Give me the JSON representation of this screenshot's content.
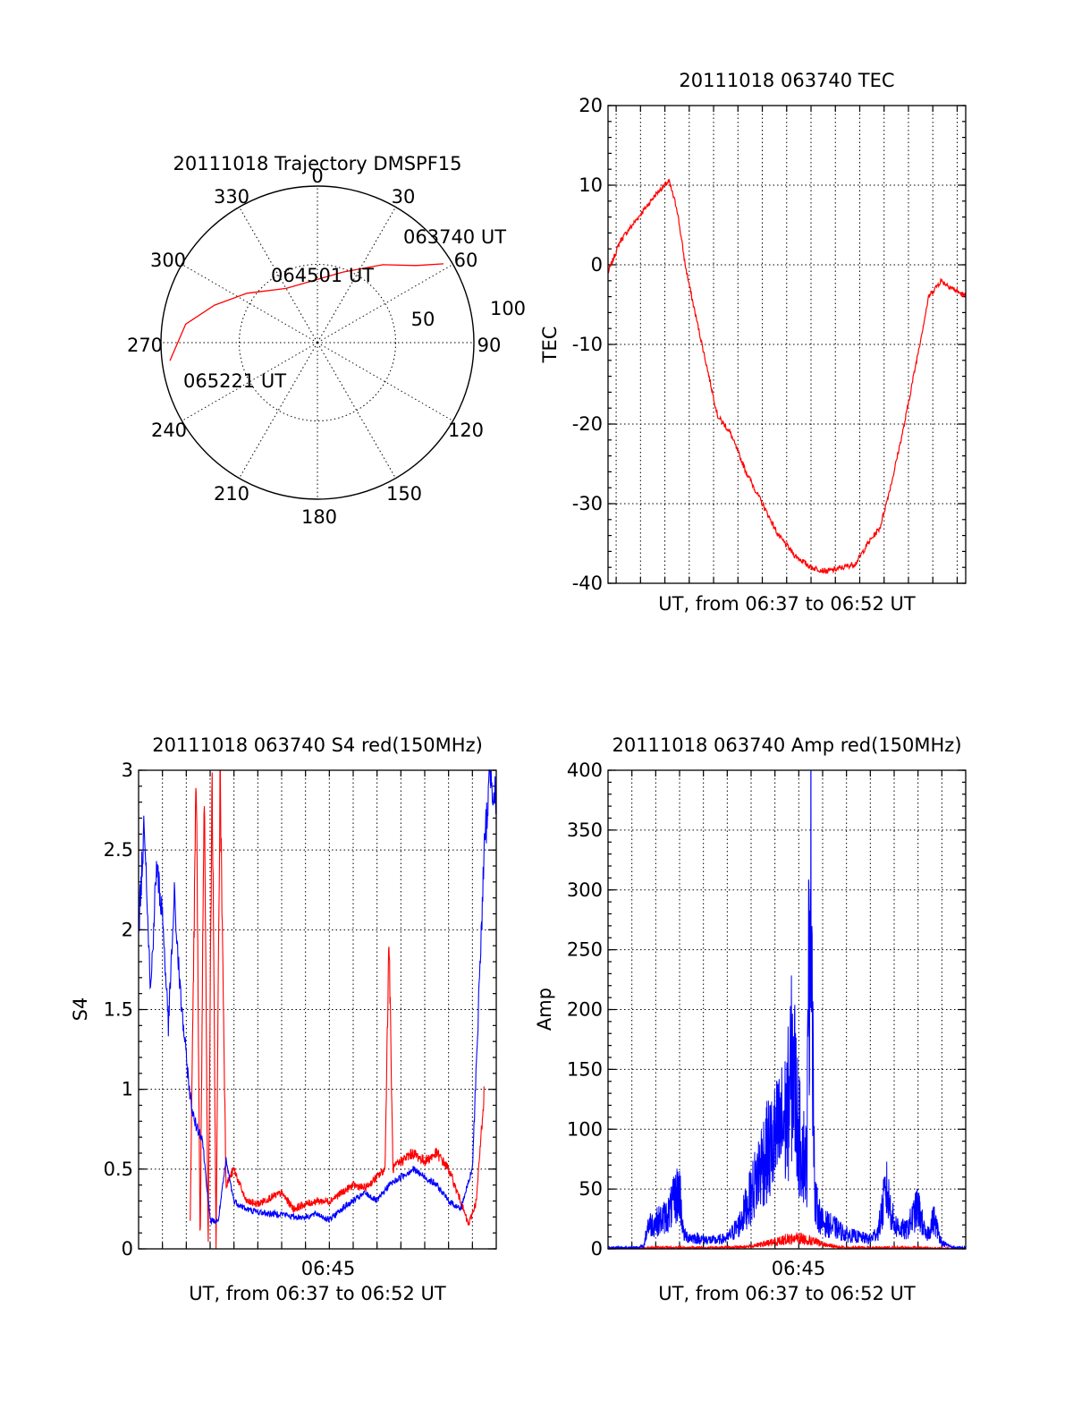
{
  "colors": {
    "red": "#ff0000",
    "blue": "#0000ff",
    "axis": "#000000"
  },
  "chart_data": [
    {
      "type": "polar",
      "title": "20111018 Trajectory DMSPF15",
      "angle_labels": [
        "0",
        "30",
        "60",
        "90",
        "120",
        "150",
        "180",
        "210",
        "240",
        "270",
        "300",
        "330"
      ],
      "radius_labels": [
        "50",
        "100"
      ],
      "rlim": [
        0,
        100
      ],
      "grid": true,
      "series": [
        {
          "color": "red",
          "points": [
            {
              "az": 58,
              "el": 95
            },
            {
              "az": 52,
              "el": 80
            },
            {
              "az": 40,
              "el": 65
            },
            {
              "az": 20,
              "el": 48
            },
            {
              "az": 330,
              "el": 40
            },
            {
              "az": 305,
              "el": 55
            },
            {
              "az": 290,
              "el": 70
            },
            {
              "az": 278,
              "el": 85
            },
            {
              "az": 263,
              "el": 95
            }
          ]
        }
      ],
      "annotations": [
        {
          "text": "063740 UT",
          "az": 58,
          "el": 95
        },
        {
          "text": "064501 UT",
          "az": 335,
          "el": 42
        },
        {
          "text": "065221 UT",
          "az": 263,
          "el": 95
        }
      ]
    },
    {
      "type": "line",
      "title": "20111018 063740 TEC",
      "xlabel": "UT, from 06:37 to 06:52 UT",
      "ylabel": "TEC",
      "xlim": [
        "06:37:40",
        "06:52:21"
      ],
      "ylim": [
        -40,
        20
      ],
      "yticks": [
        "20",
        "10",
        "0",
        "-10",
        "-20",
        "-30",
        "-40"
      ],
      "grid": true,
      "series": [
        {
          "color": "red",
          "x": [
            "06:37:40",
            "06:38:10",
            "06:38:40",
            "06:39:10",
            "06:39:40",
            "06:40:10",
            "06:40:30",
            "06:40:50",
            "06:41:10",
            "06:41:40",
            "06:42:10",
            "06:42:40",
            "06:43:20",
            "06:44:00",
            "06:44:40",
            "06:45:20",
            "06:46:00",
            "06:46:40",
            "06:47:20",
            "06:47:50",
            "06:48:20",
            "06:48:50",
            "06:49:20",
            "06:49:50",
            "06:50:20",
            "06:50:50",
            "06:51:20",
            "06:51:50",
            "06:52:21"
          ],
          "y": [
            -1,
            3,
            5,
            7,
            9,
            10.5,
            7,
            0,
            -5,
            -12,
            -19,
            -21,
            -26,
            -30,
            -34,
            -36.5,
            -38,
            -38.5,
            -38,
            -37.5,
            -35,
            -33,
            -27,
            -20,
            -12,
            -4,
            -2,
            -3,
            -4
          ]
        }
      ]
    },
    {
      "type": "line",
      "title": "20111018 063740 S4 red(150MHz)",
      "xlabel": "UT, from 06:37 to 06:52 UT",
      "ylabel": "S4",
      "xtick_label": "06:45",
      "xlim": [
        "06:37:00",
        "06:52:00"
      ],
      "ylim": [
        0,
        3
      ],
      "yticks": [
        "3",
        "2.5",
        "2",
        "1.5",
        "1",
        "0.5",
        "0"
      ],
      "grid": true,
      "series": [
        {
          "color": "red",
          "x": [
            "06:39:10",
            "06:39:25",
            "06:39:35",
            "06:39:45",
            "06:39:55",
            "06:40:05",
            "06:40:15",
            "06:40:25",
            "06:40:40",
            "06:41:00",
            "06:41:30",
            "06:42:00",
            "06:42:30",
            "06:43:00",
            "06:43:30",
            "06:44:00",
            "06:44:30",
            "06:45:00",
            "06:45:30",
            "06:46:00",
            "06:46:30",
            "06:47:00",
            "06:47:20",
            "06:47:30",
            "06:47:40",
            "06:48:00",
            "06:48:30",
            "06:49:00",
            "06:49:30",
            "06:50:00",
            "06:50:30",
            "06:50:50",
            "06:51:10",
            "06:51:30"
          ],
          "y": [
            0.2,
            3,
            0,
            3,
            0,
            3,
            0,
            3,
            0.4,
            0.5,
            0.3,
            0.28,
            0.32,
            0.35,
            0.25,
            0.28,
            0.3,
            0.3,
            0.35,
            0.4,
            0.38,
            0.45,
            0.5,
            1.97,
            0.5,
            0.55,
            0.6,
            0.55,
            0.6,
            0.5,
            0.3,
            0.15,
            0.3,
            1.0
          ]
        },
        {
          "color": "blue",
          "x": [
            "06:37:00",
            "06:37:15",
            "06:37:30",
            "06:37:45",
            "06:38:00",
            "06:38:15",
            "06:38:30",
            "06:38:45",
            "06:39:00",
            "06:39:10",
            "06:39:20",
            "06:39:40",
            "06:40:00",
            "06:40:20",
            "06:40:40",
            "06:41:00",
            "06:41:30",
            "06:42:00",
            "06:42:30",
            "06:43:00",
            "06:43:30",
            "06:44:00",
            "06:44:30",
            "06:45:00",
            "06:45:30",
            "06:46:00",
            "06:46:30",
            "06:47:00",
            "06:47:30",
            "06:48:00",
            "06:48:30",
            "06:49:00",
            "06:49:30",
            "06:50:00",
            "06:50:30",
            "06:51:00",
            "06:51:15",
            "06:51:30",
            "06:51:45",
            "06:52:00"
          ],
          "y": [
            2.0,
            2.7,
            1.6,
            2.4,
            2.1,
            1.4,
            2.2,
            1.6,
            1.2,
            0.95,
            0.8,
            0.7,
            0.18,
            0.17,
            0.55,
            0.3,
            0.25,
            0.23,
            0.22,
            0.22,
            0.2,
            0.2,
            0.22,
            0.18,
            0.25,
            0.3,
            0.35,
            0.3,
            0.4,
            0.45,
            0.5,
            0.45,
            0.4,
            0.3,
            0.25,
            0.5,
            1.5,
            2.5,
            3.0,
            2.8
          ]
        }
      ]
    },
    {
      "type": "line",
      "title": "20111018 063740 Amp red(150MHz)",
      "xlabel": "UT, from 06:37 to 06:52 UT",
      "ylabel": "Amp",
      "xtick_label": "06:45",
      "xlim": [
        "06:37:00",
        "06:52:00"
      ],
      "ylim": [
        0,
        400
      ],
      "yticks": [
        "400",
        "350",
        "300",
        "250",
        "200",
        "150",
        "100",
        "50",
        "0"
      ],
      "grid": true,
      "series": [
        {
          "color": "red",
          "x": [
            "06:37:00",
            "06:38:00",
            "06:39:00",
            "06:40:00",
            "06:41:00",
            "06:42:00",
            "06:43:00",
            "06:43:30",
            "06:44:00",
            "06:44:30",
            "06:45:00",
            "06:45:30",
            "06:46:00",
            "06:46:30",
            "06:47:00",
            "06:48:00",
            "06:49:00",
            "06:50:00",
            "06:51:00",
            "06:52:00"
          ],
          "y": [
            0,
            0,
            1,
            1,
            1,
            1,
            2,
            4,
            6,
            8,
            9,
            7,
            4,
            2,
            1,
            1,
            1,
            1,
            0,
            0
          ]
        },
        {
          "color": "blue",
          "x": [
            "06:37:00",
            "06:38:00",
            "06:38:30",
            "06:38:40",
            "06:39:00",
            "06:39:30",
            "06:40:00",
            "06:40:10",
            "06:40:20",
            "06:40:40",
            "06:41:00",
            "06:41:30",
            "06:42:00",
            "06:42:30",
            "06:43:00",
            "06:43:30",
            "06:44:00",
            "06:44:30",
            "06:44:45",
            "06:45:00",
            "06:45:20",
            "06:45:30",
            "06:45:40",
            "06:45:50",
            "06:46:00",
            "06:46:30",
            "06:47:00",
            "06:47:30",
            "06:48:00",
            "06:48:20",
            "06:48:40",
            "06:49:00",
            "06:49:30",
            "06:50:00",
            "06:50:20",
            "06:50:40",
            "06:51:00",
            "06:51:30",
            "06:52:00"
          ],
          "y": [
            1,
            1,
            2,
            20,
            22,
            28,
            50,
            12,
            10,
            9,
            8,
            7,
            9,
            20,
            45,
            75,
            90,
            110,
            160,
            95,
            70,
            370,
            40,
            30,
            22,
            18,
            12,
            10,
            8,
            15,
            50,
            20,
            15,
            35,
            10,
            25,
            5,
            1,
            1
          ]
        }
      ]
    }
  ]
}
